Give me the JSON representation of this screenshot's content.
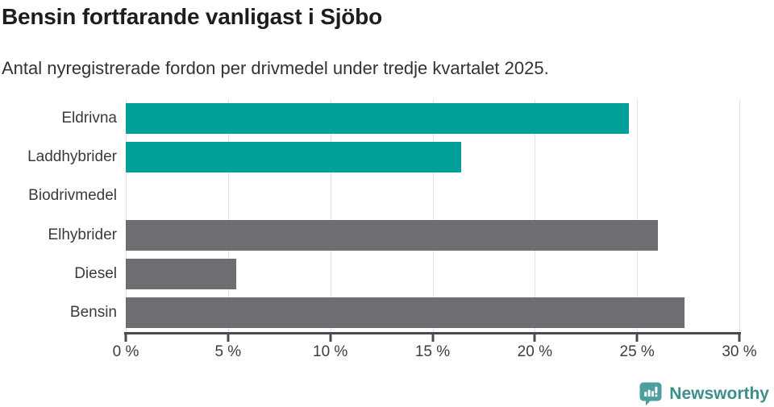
{
  "header": {
    "title": "Bensin fortfarande vanligast i Sjöbo",
    "subtitle": "Antal nyregistrerade fordon per drivmedel under tredje kvartalet 2025."
  },
  "chart_data": {
    "type": "bar",
    "orientation": "horizontal",
    "title": "Bensin fortfarande vanligast i Sjöbo",
    "subtitle": "Antal nyregistrerade fordon per drivmedel under tredje kvartalet 2025.",
    "categories": [
      "Eldrivna",
      "Laddhybrider",
      "Biodrivmedel",
      "Elhybrider",
      "Diesel",
      "Bensin"
    ],
    "values": [
      24.6,
      16.4,
      0,
      26.0,
      5.4,
      27.3
    ],
    "bar_colors": [
      "#00a099",
      "#00a099",
      "#00a099",
      "#6d6d72",
      "#6d6d72",
      "#6d6d72"
    ],
    "unit": "%",
    "xlim": [
      0,
      30
    ],
    "x_tick_values": [
      0,
      5,
      10,
      15,
      20,
      25,
      30
    ],
    "x_tick_labels": [
      "0 %",
      "5 %",
      "10 %",
      "15 %",
      "20 %",
      "25 %",
      "30 %"
    ],
    "xlabel": "",
    "ylabel": "",
    "grid": true,
    "legend": false
  },
  "colors": {
    "teal": "#00a099",
    "gray": "#6d6d72",
    "gridline": "#e3e3e5",
    "axis": "#4b4b4d",
    "title_text": "#1d1d1d",
    "body_text": "#333333",
    "logo_bubble": "#4c9f9c",
    "logo_text": "#3d8f8c"
  },
  "footer": {
    "brand": "Newsworthy",
    "logo_icon": "speech-bubble-bar-chart-exclamation"
  }
}
